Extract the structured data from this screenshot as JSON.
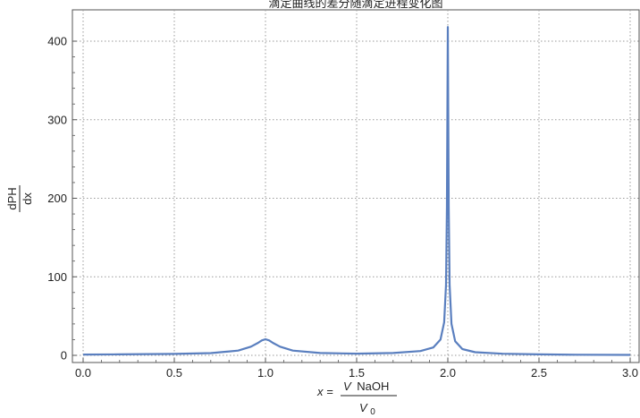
{
  "chart_data": {
    "type": "line",
    "title": "滴定曲线的差分随滴定进程变化图",
    "xlabel": {
      "prefix": "x =",
      "numerator_var": "V",
      "numerator_rest": "NaOH",
      "denominator_var": "V",
      "denominator_sub": "0"
    },
    "ylabel": {
      "numerator": "dPH",
      "denominator": "dx"
    },
    "xlim": [
      0.0,
      3.0
    ],
    "ylim": [
      0,
      430
    ],
    "xticks": [
      "0.0",
      "0.5",
      "1.0",
      "1.5",
      "2.0",
      "2.5",
      "3.0"
    ],
    "yticks": [
      "0",
      "100",
      "200",
      "300",
      "400"
    ],
    "grid": true,
    "series": [
      {
        "color": "#5a7fbf",
        "x": [
          0.0,
          0.2,
          0.5,
          0.7,
          0.85,
          0.92,
          0.96,
          0.98,
          1.0,
          1.02,
          1.04,
          1.08,
          1.15,
          1.3,
          1.5,
          1.7,
          1.85,
          1.92,
          1.96,
          1.98,
          1.99,
          1.995,
          2.0,
          2.005,
          2.01,
          2.02,
          2.04,
          2.08,
          2.15,
          2.3,
          2.5,
          2.7,
          3.0
        ],
        "y": [
          1.0,
          1.2,
          1.8,
          2.8,
          6.0,
          11.0,
          16.0,
          19.0,
          20.5,
          19.0,
          16.0,
          11.0,
          6.0,
          3.0,
          2.2,
          3.0,
          5.5,
          10.0,
          20.0,
          42.0,
          90.0,
          190.0,
          418.0,
          190.0,
          90.0,
          40.0,
          18.0,
          8.0,
          4.0,
          2.0,
          1.2,
          0.8,
          0.6
        ]
      }
    ]
  }
}
